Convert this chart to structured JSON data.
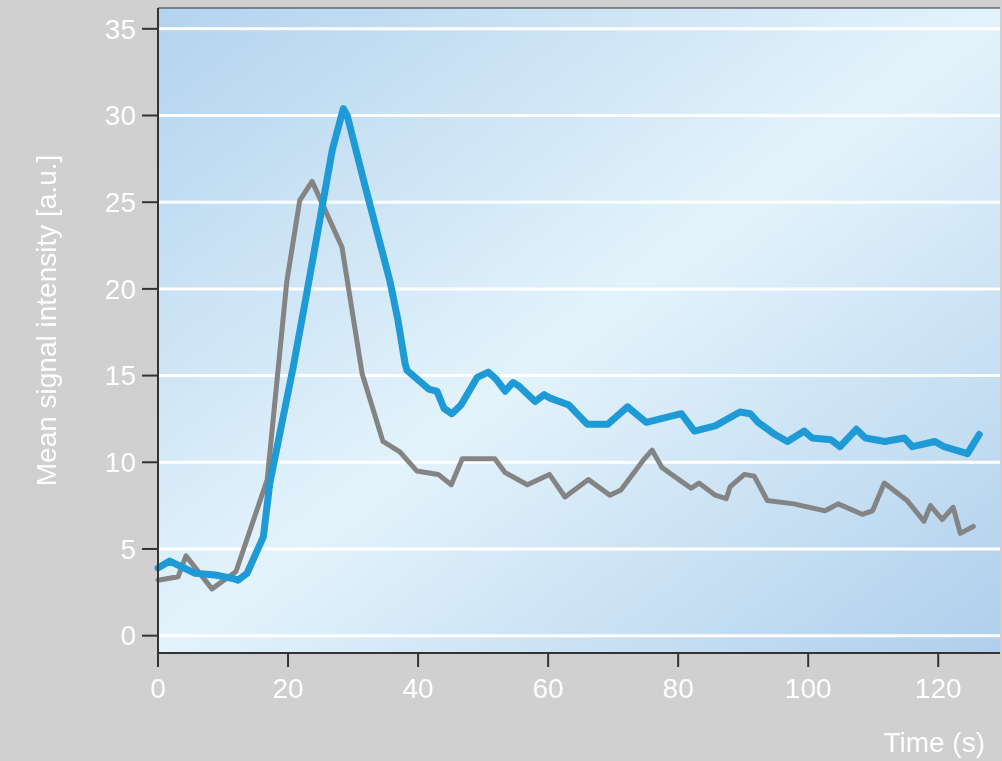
{
  "chart_data": {
    "type": "line",
    "xlabel": "Time (s)",
    "ylabel": "Mean signal intensity [a.u.]",
    "xlim": [
      0,
      129.5
    ],
    "ylim": [
      -1,
      36.2
    ],
    "xticks": [
      0,
      20,
      40,
      60,
      80,
      100,
      120
    ],
    "yticks": [
      0,
      5,
      10,
      15,
      20,
      25,
      30,
      35
    ],
    "grid": "y",
    "line_style": "solid",
    "marker": "none",
    "series": [
      {
        "color": "#848484",
        "x": [
          0,
          3.1,
          4.3,
          8.3,
          12,
          16.8,
          19.8,
          21.8,
          23.7,
          28.3,
          31.4,
          34.6,
          37.2,
          39.8,
          43.1,
          45.1,
          46.8,
          51.8,
          53.4,
          56.8,
          60.2,
          62.6,
          66.2,
          69.5,
          71.2,
          74.8,
          76,
          77.5,
          80.5,
          82,
          83.2,
          85.7,
          87.4,
          88,
          90.2,
          91.7,
          93.7,
          97.8,
          102.6,
          104.6,
          108.3,
          109.9,
          111.7,
          115.2,
          117.8,
          118.8,
          120.6,
          122.3,
          123.4,
          125.4
        ],
        "values": [
          3.2,
          3.4,
          4.6,
          2.7,
          3.7,
          9.0,
          20.4,
          25.1,
          26.2,
          22.4,
          15.1,
          11.2,
          10.6,
          9.5,
          9.3,
          8.7,
          10.2,
          10.2,
          9.4,
          8.7,
          9.3,
          8.0,
          9.0,
          8.1,
          8.4,
          10.2,
          10.7,
          9.7,
          8.9,
          8.5,
          8.8,
          8.1,
          7.9,
          8.6,
          9.3,
          9.2,
          7.8,
          7.6,
          7.2,
          7.6,
          7.0,
          7.2,
          8.8,
          7.8,
          6.6,
          7.5,
          6.7,
          7.4,
          5.9,
          6.3
        ]
      },
      {
        "color": "#1e9ad6",
        "x": [
          0,
          1.8,
          5.7,
          8.8,
          11.5,
          12.3,
          13.7,
          16.2,
          17.2,
          20.8,
          22.9,
          24.9,
          26.8,
          28.5,
          29.1,
          31.8,
          35.7,
          36.9,
          38,
          38.3,
          41.7,
          42.9,
          44,
          45.2,
          46.6,
          49.1,
          50.8,
          52,
          53.4,
          54.6,
          55.5,
          58,
          59.4,
          60.3,
          63.2,
          66,
          69.2,
          72.2,
          75.1,
          80.5,
          82.5,
          85.7,
          89.5,
          91.1,
          92.3,
          94.9,
          96.8,
          99.4,
          100.6,
          103.5,
          104.9,
          107.4,
          108.8,
          111.8,
          114.8,
          116,
          119.5,
          120.9,
          124.5,
          126.3
        ],
        "values": [
          3.9,
          4.3,
          3.6,
          3.5,
          3.3,
          3.2,
          3.6,
          5.7,
          8.8,
          15.5,
          19.8,
          24.0,
          28.0,
          30.4,
          30.0,
          26.0,
          20.4,
          18.2,
          15.7,
          15.3,
          14.2,
          14.1,
          13.1,
          12.8,
          13.3,
          14.9,
          15.2,
          14.8,
          14.1,
          14.6,
          14.4,
          13.5,
          13.9,
          13.7,
          13.3,
          12.2,
          12.2,
          13.2,
          12.3,
          12.8,
          11.8,
          12.1,
          12.9,
          12.8,
          12.3,
          11.6,
          11.2,
          11.8,
          11.4,
          11.3,
          10.9,
          11.9,
          11.4,
          11.2,
          11.4,
          10.9,
          11.2,
          10.9,
          10.5,
          11.6
        ]
      }
    ]
  }
}
